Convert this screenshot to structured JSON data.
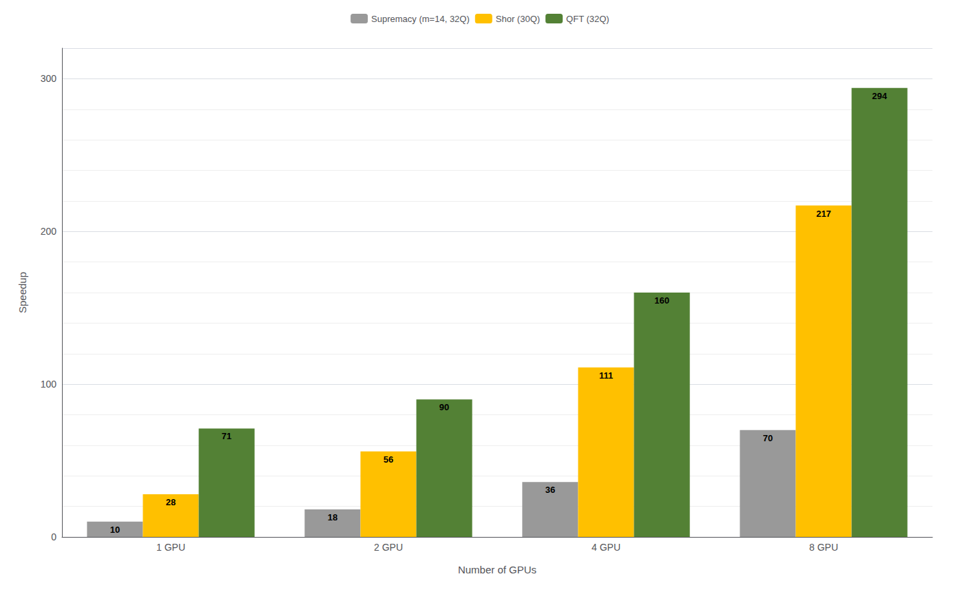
{
  "chart_data": {
    "type": "bar",
    "categories": [
      "1 GPU",
      "2 GPU",
      "4 GPU",
      "8 GPU"
    ],
    "series": [
      {
        "name": "Supremacy (m=14, 32Q)",
        "color": "#999999",
        "values": [
          10,
          18,
          36,
          70
        ]
      },
      {
        "name": "Shor (30Q)",
        "color": "#FFC000",
        "values": [
          28,
          56,
          111,
          217
        ]
      },
      {
        "name": "QFT (32Q)",
        "color": "#538135",
        "values": [
          71,
          90,
          160,
          294
        ]
      }
    ],
    "xlabel": "Number of GPUs",
    "ylabel": "Speedup",
    "ylim": [
      0,
      320
    ],
    "yticks": [
      0,
      100,
      200,
      300
    ],
    "grid": true,
    "legend": "top",
    "data_labels": true
  }
}
